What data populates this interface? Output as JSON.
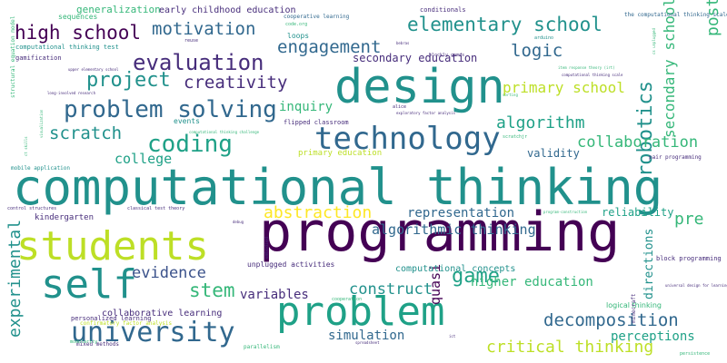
{
  "palette": {
    "background": "#ffffff",
    "teal": "#21918c",
    "blue": "#31688e",
    "navy": "#3b528b",
    "purple": "#440154",
    "violet": "#472d7b",
    "green": "#35b779",
    "lime": "#bddf26",
    "yellow": "#fde725",
    "sea": "#1fa187",
    "light_green": "#90d743"
  },
  "words": [
    {
      "text": "computational thinking",
      "color": "#21918c"
    },
    {
      "text": "programming",
      "color": "#440154"
    },
    {
      "text": "design",
      "color": "#21918c"
    },
    {
      "text": "students",
      "color": "#bddf26"
    },
    {
      "text": "technology",
      "color": "#31688e"
    },
    {
      "text": "problem",
      "color": "#1fa187"
    },
    {
      "text": "self",
      "color": "#21918c"
    },
    {
      "text": "problem solving",
      "color": "#31688e"
    },
    {
      "text": "university",
      "color": "#31688e"
    },
    {
      "text": "coding",
      "color": "#1fa187"
    },
    {
      "text": "evaluation",
      "color": "#472d7b"
    },
    {
      "text": "elementary school",
      "color": "#21918c"
    },
    {
      "text": "project",
      "color": "#21918c"
    },
    {
      "text": "high school",
      "color": "#440154"
    },
    {
      "text": "motivation",
      "color": "#31688e"
    },
    {
      "text": "engagement",
      "color": "#31688e"
    },
    {
      "text": "creativity",
      "color": "#472d7b"
    },
    {
      "text": "logic",
      "color": "#31688e"
    },
    {
      "text": "robotics",
      "color": "#21918c"
    },
    {
      "text": "game",
      "color": "#1fa187"
    },
    {
      "text": "stem",
      "color": "#35b779"
    },
    {
      "text": "decomposition",
      "color": "#31688e"
    },
    {
      "text": "critical thinking",
      "color": "#bddf26"
    },
    {
      "text": "scratch",
      "color": "#21918c"
    },
    {
      "text": "abstraction",
      "color": "#fde725"
    },
    {
      "text": "algorithm",
      "color": "#1fa187"
    },
    {
      "text": "collaboration",
      "color": "#35b779"
    },
    {
      "text": "experimental",
      "color": "#21918c"
    },
    {
      "text": "evidence",
      "color": "#3b528b"
    },
    {
      "text": "construct",
      "color": "#21918c"
    },
    {
      "text": "algorithmic thinking",
      "color": "#31688e"
    },
    {
      "text": "primary school",
      "color": "#bddf26"
    },
    {
      "text": "higher education",
      "color": "#35b779"
    },
    {
      "text": "representation",
      "color": "#31688e"
    },
    {
      "text": "pre",
      "color": "#35b779"
    },
    {
      "text": "post",
      "color": "#35b779"
    },
    {
      "text": "secondary school",
      "color": "#35b779"
    },
    {
      "text": "college",
      "color": "#1fa187"
    },
    {
      "text": "inquiry",
      "color": "#35b779"
    },
    {
      "text": "variables",
      "color": "#472d7b"
    },
    {
      "text": "simulation",
      "color": "#31688e"
    },
    {
      "text": "perceptions",
      "color": "#1fa187"
    },
    {
      "text": "quasi",
      "color": "#440154"
    },
    {
      "text": "reliability",
      "color": "#1fa187"
    },
    {
      "text": "validity",
      "color": "#31688e"
    },
    {
      "text": "directions",
      "color": "#21918c"
    },
    {
      "text": "secondary education",
      "color": "#472d7b"
    },
    {
      "text": "generalization",
      "color": "#35b779"
    },
    {
      "text": "early childhood education",
      "color": "#472d7b"
    },
    {
      "text": "collaborative learning",
      "color": "#472d7b"
    },
    {
      "text": "computational concepts",
      "color": "#21918c"
    },
    {
      "text": "kindergarten",
      "color": "#472d7b"
    },
    {
      "text": "primary education",
      "color": "#bddf26"
    },
    {
      "text": "unplugged activities",
      "color": "#472d7b"
    },
    {
      "text": "loops",
      "color": "#21918c"
    },
    {
      "text": "events",
      "color": "#21918c"
    },
    {
      "text": "logical thinking",
      "color": "#35b779"
    },
    {
      "text": "sequences",
      "color": "#35b779"
    },
    {
      "text": "gamification",
      "color": "#472d7b"
    },
    {
      "text": "computational thinking test",
      "color": "#21918c"
    },
    {
      "text": "mobile application",
      "color": "#21918c"
    },
    {
      "text": "pair programming",
      "color": "#472d7b"
    },
    {
      "text": "block programming",
      "color": "#472d7b"
    },
    {
      "text": "flipped classroom",
      "color": "#472d7b"
    },
    {
      "text": "conditionals",
      "color": "#472d7b"
    },
    {
      "text": "cooperative learning",
      "color": "#31688e"
    },
    {
      "text": "code.org",
      "color": "#35b779"
    },
    {
      "text": "the computational thinking scale",
      "color": "#31688e"
    },
    {
      "text": "arduino",
      "color": "#21918c"
    },
    {
      "text": "personalized learning",
      "color": "#472d7b"
    },
    {
      "text": "mixed methods",
      "color": "#472d7b"
    },
    {
      "text": "confirmatory factor analysis",
      "color": "#bddf26"
    },
    {
      "text": "parallelism",
      "color": "#35b779"
    },
    {
      "text": "modularity",
      "color": "#35b779"
    },
    {
      "text": "persistence",
      "color": "#35b779"
    },
    {
      "text": "minecraft",
      "color": "#472d7b"
    },
    {
      "text": "cooperation",
      "color": "#35b779"
    },
    {
      "text": "structural equation model",
      "color": "#35b779"
    },
    {
      "text": "classical test theory",
      "color": "#472d7b"
    },
    {
      "text": "universal design for learning",
      "color": "#472d7b"
    },
    {
      "text": "spreadsheet",
      "color": "#472d7b"
    },
    {
      "text": "alice",
      "color": "#472d7b"
    },
    {
      "text": "blockly games",
      "color": "#472d7b"
    },
    {
      "text": "exploratory factor analysis",
      "color": "#472d7b"
    },
    {
      "text": "upper elementary school",
      "color": "#472d7b"
    },
    {
      "text": "debug",
      "color": "#472d7b"
    },
    {
      "text": "reuse",
      "color": "#472d7b"
    },
    {
      "text": "control structures",
      "color": "#472d7b"
    },
    {
      "text": "item response theory (irt)",
      "color": "#35b779"
    },
    {
      "text": "computational thinking scale",
      "color": "#472d7b"
    },
    {
      "text": "computational thinking challenge",
      "color": "#35b779"
    },
    {
      "text": "ict",
      "color": "#472d7b"
    },
    {
      "text": "scratchjr",
      "color": "#35b779"
    },
    {
      "text": "embodied",
      "color": "#472d7b"
    },
    {
      "text": "long-involved research",
      "color": "#472d7b"
    },
    {
      "text": "bebras",
      "color": "#472d7b"
    },
    {
      "text": "program-construction",
      "color": "#35b779"
    },
    {
      "text": "cs unplugged",
      "color": "#35b779"
    },
    {
      "text": "visualization",
      "color": "#35b779"
    },
    {
      "text": "ct skills",
      "color": "#35b779"
    },
    {
      "text": "sorting",
      "color": "#35b779"
    }
  ]
}
